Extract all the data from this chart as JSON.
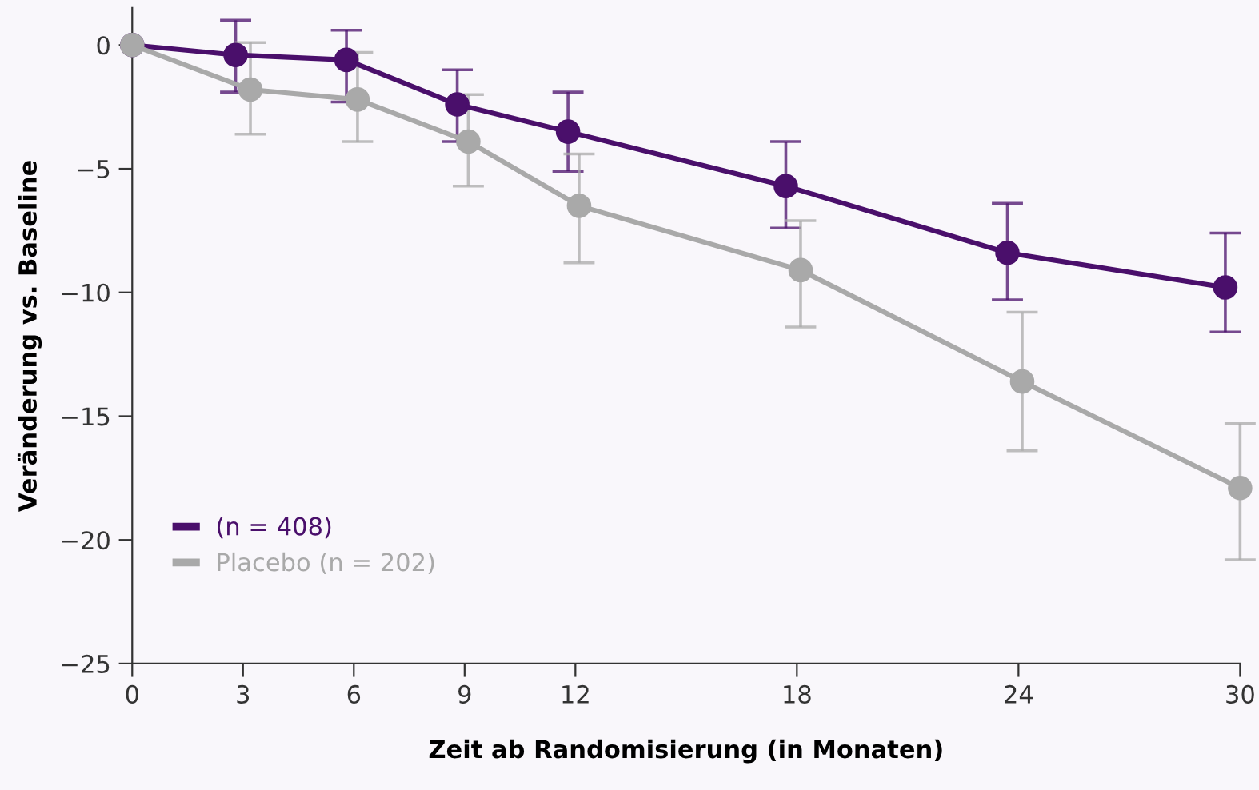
{
  "chart_data": {
    "type": "line",
    "xlabel": "Zeit ab Randomisierung (in Monaten)",
    "ylabel": "Veränderung vs. Baseline",
    "xlim": [
      0,
      30
    ],
    "xticks": [
      0,
      3,
      6,
      9,
      12,
      18,
      24,
      30
    ],
    "ylim": [
      -25,
      1.5
    ],
    "yticks": [
      {
        "value": -25,
        "label": "−25"
      },
      {
        "value": -20,
        "label": "−20"
      },
      {
        "value": -15,
        "label": "−15"
      },
      {
        "value": -10,
        "label": "−10"
      },
      {
        "value": -5,
        "label": "−5"
      },
      0
    ],
    "grid": false,
    "legend": "bottom left",
    "marker": "circle",
    "line_style": "solid",
    "series": [
      {
        "name": "(n = 408)",
        "color": "#4a0f6b",
        "x": [
          0,
          2.8,
          5.8,
          8.8,
          11.8,
          17.7,
          23.7,
          29.6
        ],
        "values": [
          0,
          -0.4,
          -0.6,
          -2.4,
          -3.5,
          -5.7,
          -8.4,
          -9.8
        ],
        "errors": [
          null,
          [
            -1.9,
            1.0
          ],
          [
            -2.3,
            0.6
          ],
          [
            -3.9,
            -1.0
          ],
          [
            -5.1,
            -1.9
          ],
          [
            -7.4,
            -3.9
          ],
          [
            -10.3,
            -6.4
          ],
          [
            -11.6,
            -7.6
          ]
        ]
      },
      {
        "name": "Placebo (n = 202)",
        "color": "#a9a9a9",
        "x": [
          0,
          3.2,
          6.1,
          9.1,
          12.1,
          18.1,
          24.1,
          30
        ],
        "values": [
          0,
          -1.8,
          -2.2,
          -3.9,
          -6.5,
          -9.1,
          -13.6,
          -17.9
        ],
        "errors": [
          null,
          [
            -3.6,
            0.1
          ],
          [
            -3.9,
            -0.3
          ],
          [
            -5.7,
            -2.0
          ],
          [
            -8.8,
            -4.4
          ],
          [
            -11.4,
            -7.1
          ],
          [
            -16.4,
            -10.8
          ],
          [
            -20.8,
            -15.3
          ]
        ]
      }
    ]
  }
}
